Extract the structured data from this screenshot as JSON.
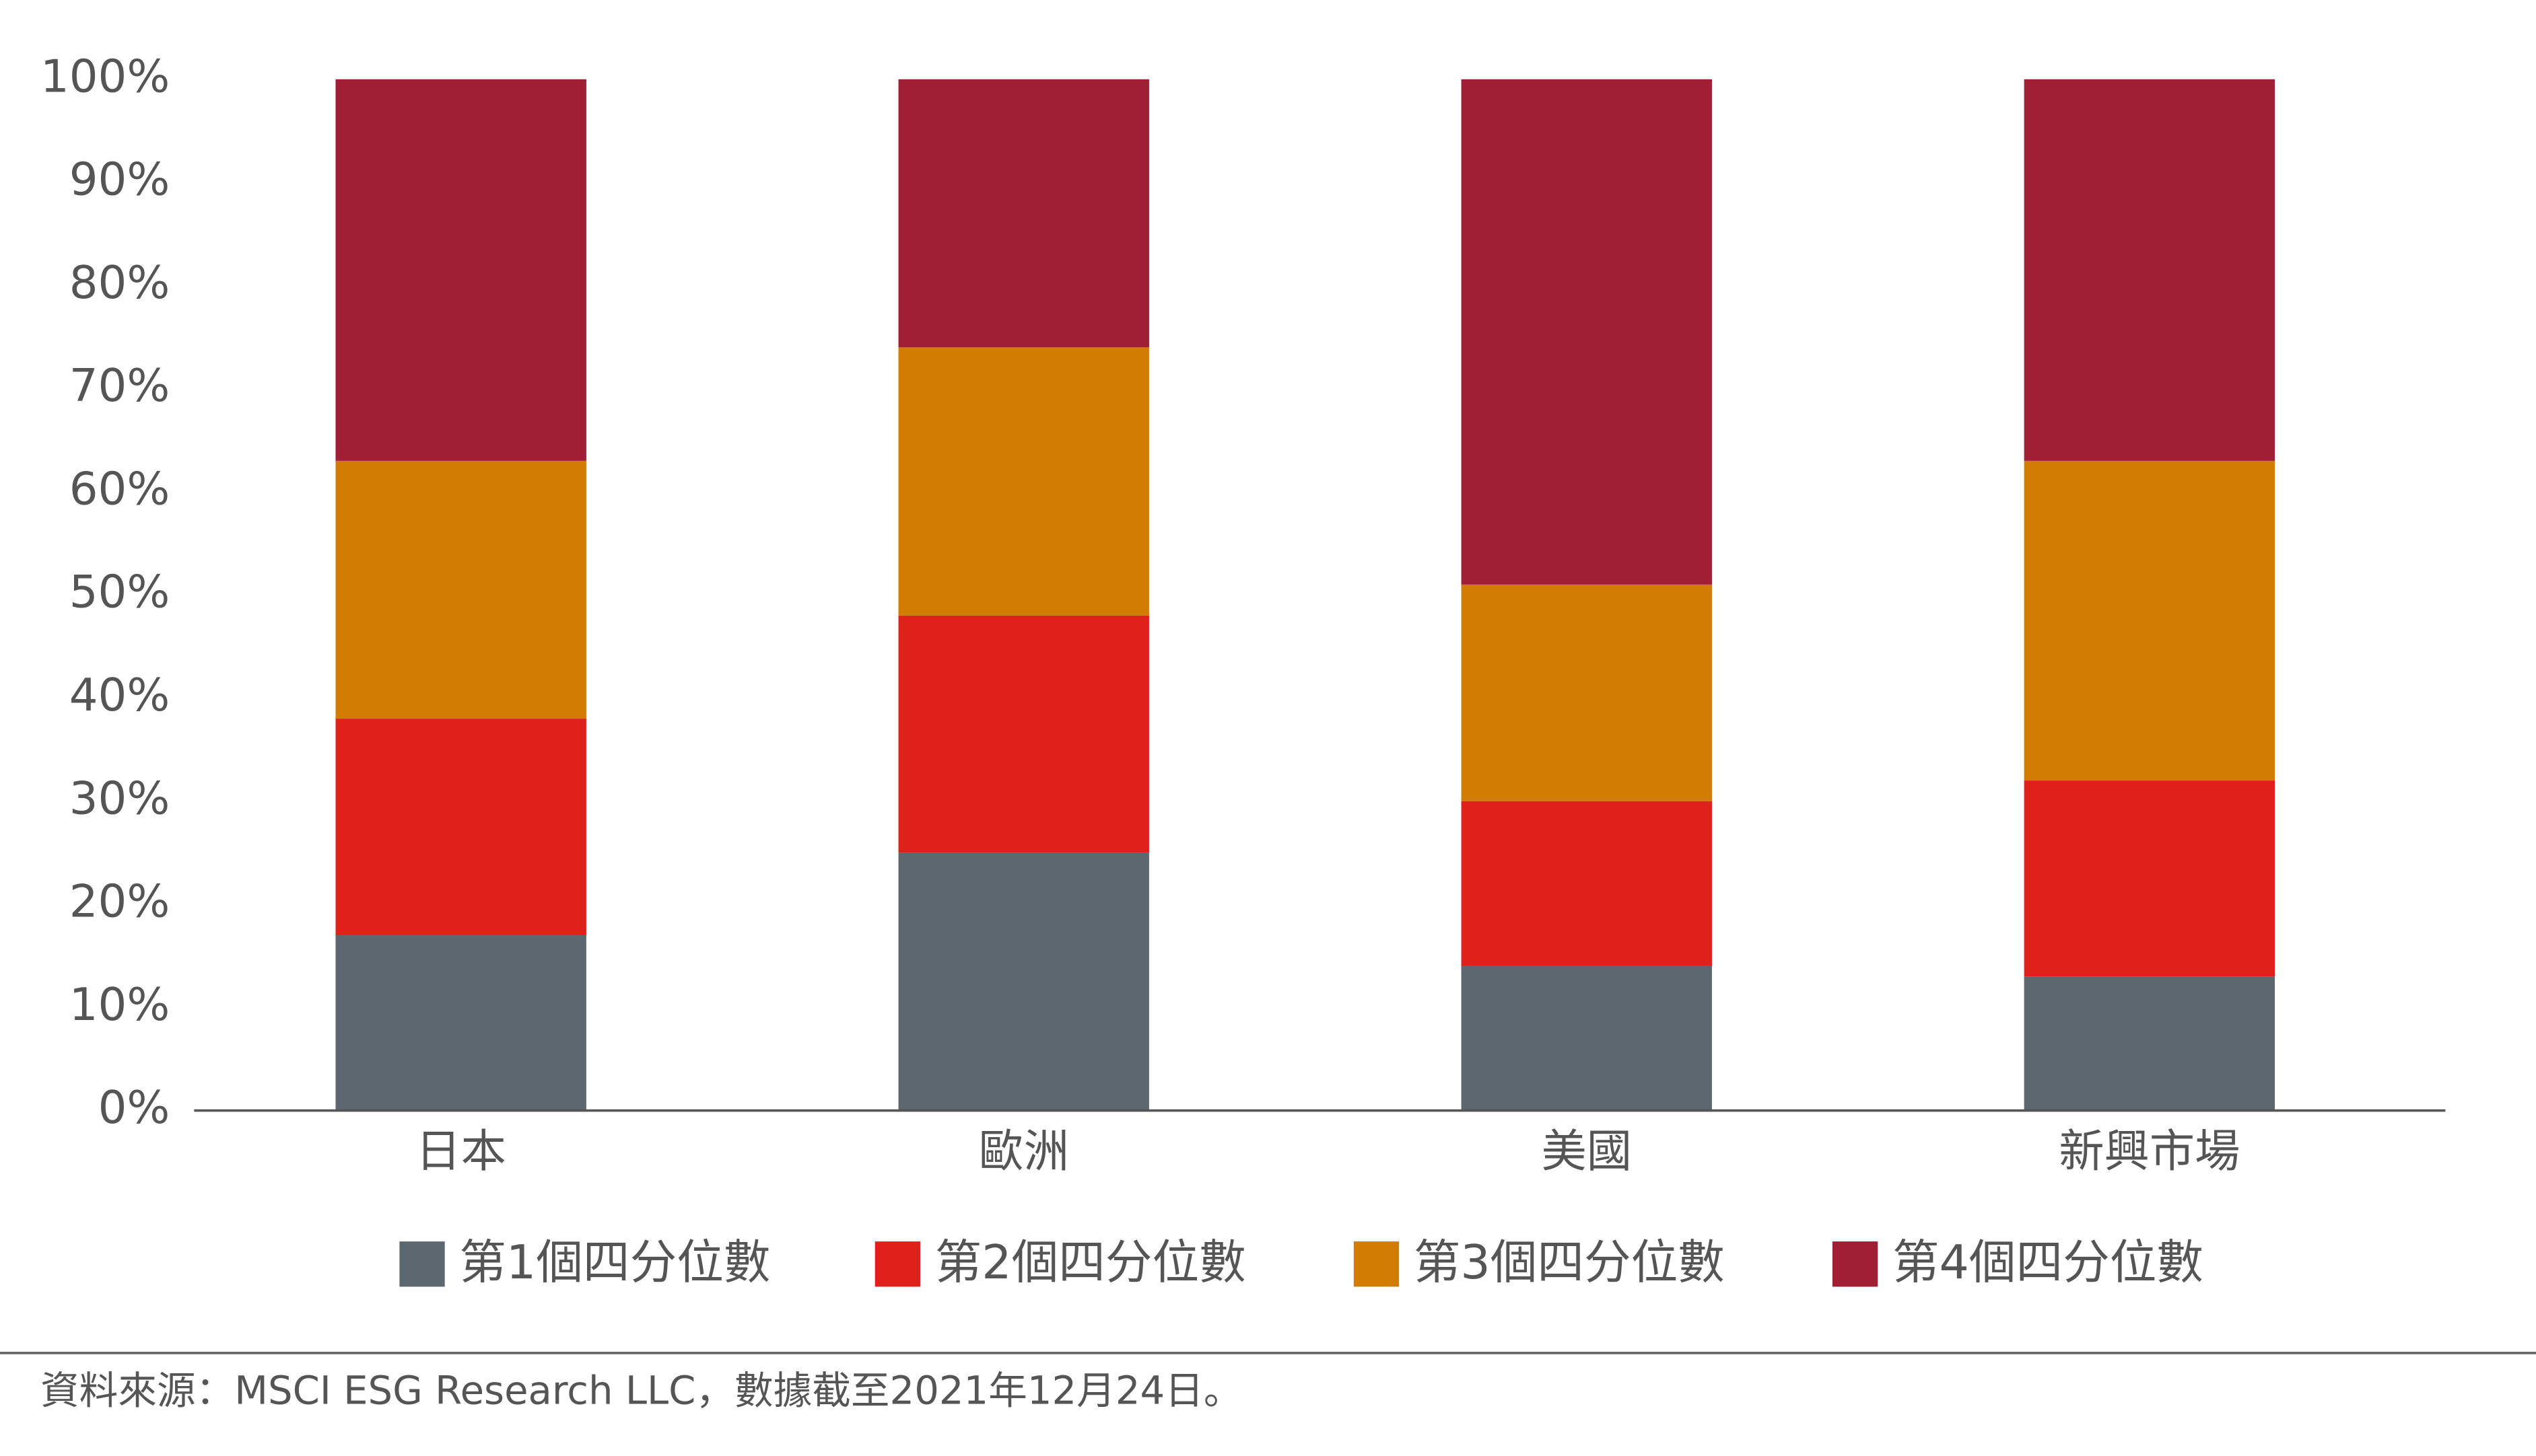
{
  "chart_data": {
    "type": "stacked_bar",
    "categories": [
      "日本",
      "歐洲",
      "美國",
      "新興市場"
    ],
    "series": [
      {
        "name": "第1個四分位數",
        "color": "#5d6770",
        "values": [
          17,
          25,
          14,
          13
        ]
      },
      {
        "name": "第2個四分位數",
        "color": "#e0201b",
        "values": [
          21,
          23,
          16,
          19
        ]
      },
      {
        "name": "第3個四分位數",
        "color": "#d17c03",
        "values": [
          25,
          26,
          21,
          31
        ]
      },
      {
        "name": "第4個四分位數",
        "color": "#a01f35",
        "values": [
          37,
          26,
          49,
          37
        ]
      }
    ],
    "ylim": [
      0,
      100
    ],
    "yticks": [
      {
        "value": 0,
        "label": "0%"
      },
      {
        "value": 10,
        "label": "10%"
      },
      {
        "value": 20,
        "label": "20%"
      },
      {
        "value": 30,
        "label": "30%"
      },
      {
        "value": 40,
        "label": "40%"
      },
      {
        "value": 50,
        "label": "50%"
      },
      {
        "value": 60,
        "label": "60%"
      },
      {
        "value": 70,
        "label": "70%"
      },
      {
        "value": 80,
        "label": "80%"
      },
      {
        "value": 90,
        "label": "90%"
      },
      {
        "value": 100,
        "label": "100%"
      }
    ],
    "grid": false,
    "legend": "bottom",
    "source": "資料來源：MSCI ESG Research LLC，數據截至2021年12月24日。"
  }
}
